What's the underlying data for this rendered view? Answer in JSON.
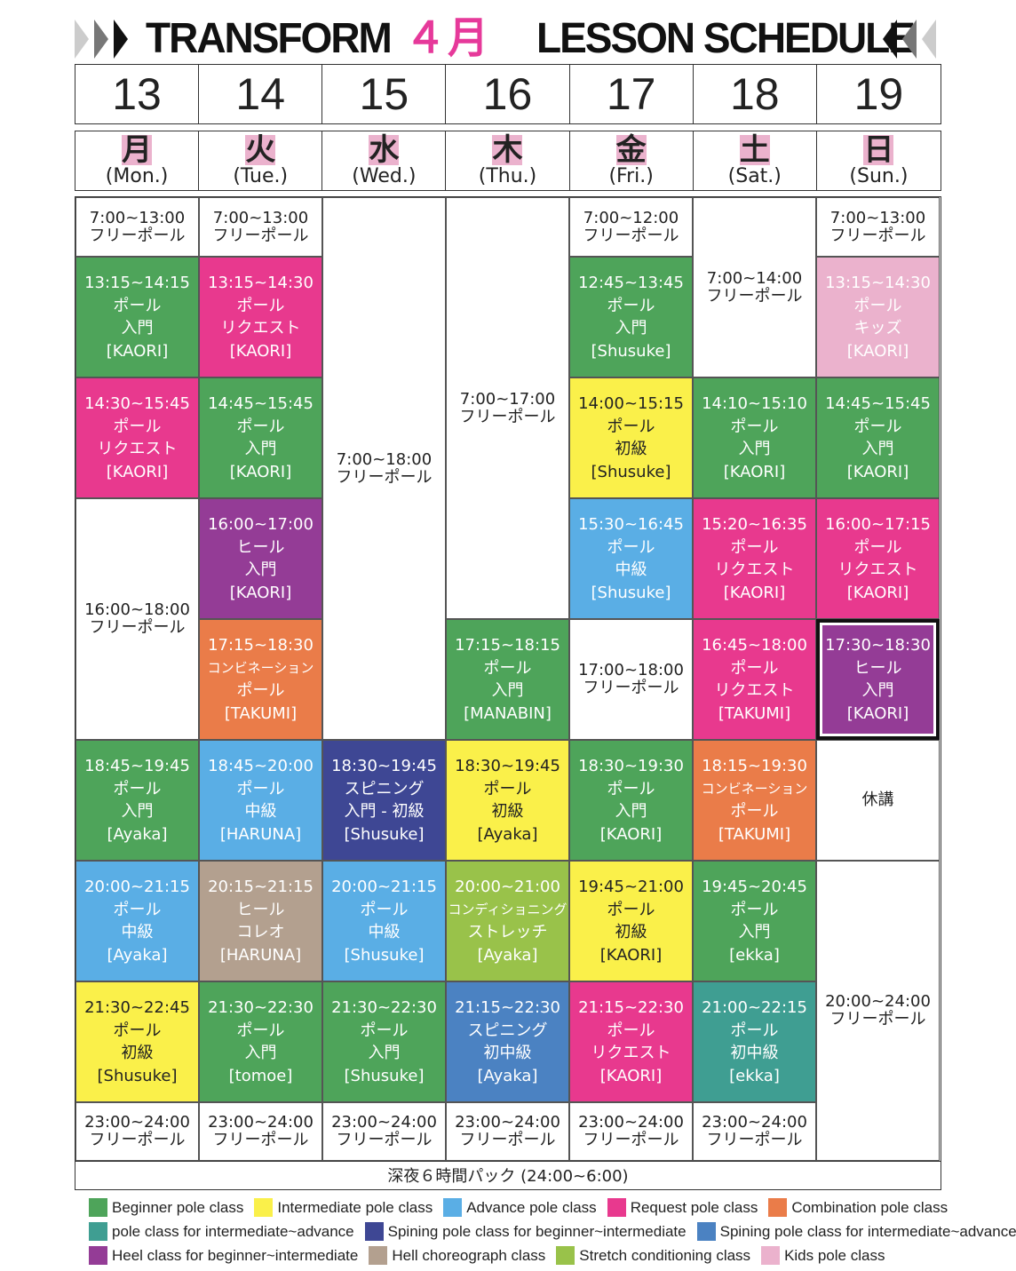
{
  "header": {
    "left": "TRANSFORM",
    "month": "４月",
    "right": "LESSON SCHEDULE"
  },
  "dates": [
    "13",
    "14",
    "15",
    "16",
    "17",
    "18",
    "19"
  ],
  "days": [
    {
      "kanji": "月",
      "en": "(Mon.)"
    },
    {
      "kanji": "火",
      "en": "(Tue.)"
    },
    {
      "kanji": "水",
      "en": "(Wed.)"
    },
    {
      "kanji": "木",
      "en": "(Thu.)"
    },
    {
      "kanji": "金",
      "en": "(Fri.)"
    },
    {
      "kanji": "土",
      "en": "(Sat.)"
    },
    {
      "kanji": "日",
      "en": "(Sun.)"
    }
  ],
  "cells": [
    {
      "lines": [
        "7:00~13:00",
        "フリーポール"
      ],
      "color": "free"
    },
    {
      "lines": [
        "13:15~14:15",
        "ポール",
        "入門",
        "[KAORI]"
      ],
      "color": "g"
    },
    {
      "lines": [
        "14:30~15:45",
        "ポール",
        "リクエスト",
        "[KAORI]"
      ],
      "color": "p"
    },
    {
      "lines": [
        "16:00~18:00",
        "フリーポール"
      ],
      "color": "free"
    },
    {
      "lines": [
        "18:45~19:45",
        "ポール",
        "入門",
        "[Ayaka]"
      ],
      "color": "g"
    },
    {
      "lines": [
        "20:00~21:15",
        "ポール",
        "中級",
        "[Ayaka]"
      ],
      "color": "b"
    },
    {
      "lines": [
        "21:30~22:45",
        "ポール",
        "初級",
        "[Shusuke]"
      ],
      "color": "y"
    },
    {
      "lines": [
        "23:00~24:00",
        "フリーポール"
      ],
      "color": "free"
    },
    {
      "lines": [
        "7:00~13:00",
        "フリーポール"
      ],
      "color": "free"
    },
    {
      "lines": [
        "13:15~14:30",
        "ポール",
        "リクエスト",
        "[KAORI]"
      ],
      "color": "p"
    },
    {
      "lines": [
        "14:45~15:45",
        "ポール",
        "入門",
        "[KAORI]"
      ],
      "color": "g"
    },
    {
      "lines": [
        "16:00~17:00",
        "ヒール",
        "入門",
        "[KAORI]"
      ],
      "color": "v"
    },
    {
      "lines": [
        "17:15~18:30",
        "コンビネーション",
        "ポール",
        "[TAKUMI]"
      ],
      "color": "o"
    },
    {
      "lines": [
        "18:45~20:00",
        "ポール",
        "中級",
        "[HARUNA]"
      ],
      "color": "b"
    },
    {
      "lines": [
        "20:15~21:15",
        "ヒール",
        "コレオ",
        "[HARUNA]"
      ],
      "color": "br"
    },
    {
      "lines": [
        "21:30~22:30",
        "ポール",
        "入門",
        "[tomoe]"
      ],
      "color": "g"
    },
    {
      "lines": [
        "23:00~24:00",
        "フリーポール"
      ],
      "color": "free"
    },
    {
      "lines": [
        "7:00~18:00",
        "フリーポール"
      ],
      "color": "free"
    },
    {
      "lines": [
        "18:30~19:45",
        "スピニング",
        "入門 - 初級",
        "[Shusuke]"
      ],
      "color": "n"
    },
    {
      "lines": [
        "20:00~21:15",
        "ポール",
        "中級",
        "[Shusuke]"
      ],
      "color": "b"
    },
    {
      "lines": [
        "21:30~22:30",
        "ポール",
        "入門",
        "[Shusuke]"
      ],
      "color": "g"
    },
    {
      "lines": [
        "23:00~24:00",
        "フリーポール"
      ],
      "color": "free"
    },
    {
      "lines": [
        "7:00~17:00",
        "フリーポール"
      ],
      "color": "free"
    },
    {
      "lines": [
        "17:15~18:15",
        "ポール",
        "入門",
        "[MANABIN]"
      ],
      "color": "g"
    },
    {
      "lines": [
        "18:30~19:45",
        "ポール",
        "初級",
        "[Ayaka]"
      ],
      "color": "y"
    },
    {
      "lines": [
        "20:00~21:00",
        "コンディショニング",
        "ストレッチ",
        "[Ayaka]"
      ],
      "color": "lg"
    },
    {
      "lines": [
        "21:15~22:30",
        "スピニング",
        "初中級",
        "[Ayaka]"
      ],
      "color": "s"
    },
    {
      "lines": [
        "23:00~24:00",
        "フリーポール"
      ],
      "color": "free"
    },
    {
      "lines": [
        "7:00~12:00",
        "フリーポール"
      ],
      "color": "free"
    },
    {
      "lines": [
        "12:45~13:45",
        "ポール",
        "入門",
        "[Shusuke]"
      ],
      "color": "g"
    },
    {
      "lines": [
        "14:00~15:15",
        "ポール",
        "初級",
        "[Shusuke]"
      ],
      "color": "y"
    },
    {
      "lines": [
        "15:30~16:45",
        "ポール",
        "中級",
        "[Shusuke]"
      ],
      "color": "b"
    },
    {
      "lines": [
        "17:00~18:00",
        "フリーポール"
      ],
      "color": "free"
    },
    {
      "lines": [
        "18:30~19:30",
        "ポール",
        "入門",
        "[KAORI]"
      ],
      "color": "g"
    },
    {
      "lines": [
        "19:45~21:00",
        "ポール",
        "初級",
        "[KAORI]"
      ],
      "color": "y"
    },
    {
      "lines": [
        "21:15~22:30",
        "ポール",
        "リクエスト",
        "[KAORI]"
      ],
      "color": "p"
    },
    {
      "lines": [
        "23:00~24:00",
        "フリーポール"
      ],
      "color": "free"
    },
    {
      "lines": [
        "7:00~14:00",
        "フリーポール"
      ],
      "color": "free"
    },
    {
      "lines": [
        "14:10~15:10",
        "ポール",
        "入門",
        "[KAORI]"
      ],
      "color": "g"
    },
    {
      "lines": [
        "15:20~16:35",
        "ポール",
        "リクエスト",
        "[KAORI]"
      ],
      "color": "p"
    },
    {
      "lines": [
        "16:45~18:00",
        "ポール",
        "リクエスト",
        "[TAKUMI]"
      ],
      "color": "p"
    },
    {
      "lines": [
        "18:15~19:30",
        "コンビネーション",
        "ポール",
        "[TAKUMI]"
      ],
      "color": "o"
    },
    {
      "lines": [
        "19:45~20:45",
        "ポール",
        "入門",
        "[ekka]"
      ],
      "color": "g"
    },
    {
      "lines": [
        "21:00~22:15",
        "ポール",
        "初中級",
        "[ekka]"
      ],
      "color": "t"
    },
    {
      "lines": [
        "23:00~24:00",
        "フリーポール"
      ],
      "color": "free"
    },
    {
      "lines": [
        "7:00~13:00",
        "フリーポール"
      ],
      "color": "free"
    },
    {
      "lines": [
        "13:15~14:30",
        "ポール",
        "キッズ",
        "[KAORI]"
      ],
      "color": "k"
    },
    {
      "lines": [
        "14:45~15:45",
        "ポール",
        "入門",
        "[KAORI]"
      ],
      "color": "g"
    },
    {
      "lines": [
        "16:00~17:15",
        "ポール",
        "リクエスト",
        "[KAORI]"
      ],
      "color": "p"
    },
    {
      "lines": [
        "17:30~18:30",
        "ヒール",
        "入門",
        "[KAORI]"
      ],
      "color": "v"
    },
    {
      "lines": [
        "休講"
      ],
      "color": "free"
    },
    {
      "lines": [
        "20:00~24:00",
        "フリーポール"
      ],
      "color": "free"
    }
  ],
  "night_pack": "深夜６時間パック (24:00~6:00)",
  "legend": [
    [
      {
        "label": "Beginner pole class",
        "color": "#4ea45a"
      },
      {
        "label": "Intermediate pole class",
        "color": "#faf04a"
      },
      {
        "label": "Advance pole class",
        "color": "#5aaee5"
      },
      {
        "label": "Request pole class",
        "color": "#e8398e"
      },
      {
        "label": "Combination pole class",
        "color": "#ea7c49"
      }
    ],
    [
      {
        "label": "pole class for intermediate~advance",
        "color": "#3f9e92"
      },
      {
        "label": "Spining pole class for beginner~intermediate",
        "color": "#3e4794"
      },
      {
        "label": "Spining pole class for intermediate~advance",
        "color": "#4b82c2"
      }
    ],
    [
      {
        "label": "Heel class for beginner~intermediate",
        "color": "#943c96"
      },
      {
        "label": "Hell choreograph class",
        "color": "#b3a08f"
      },
      {
        "label": "Stretch conditioning class",
        "color": "#99c24a"
      },
      {
        "label": "Kids pole class",
        "color": "#ebb2cd"
      }
    ]
  ]
}
